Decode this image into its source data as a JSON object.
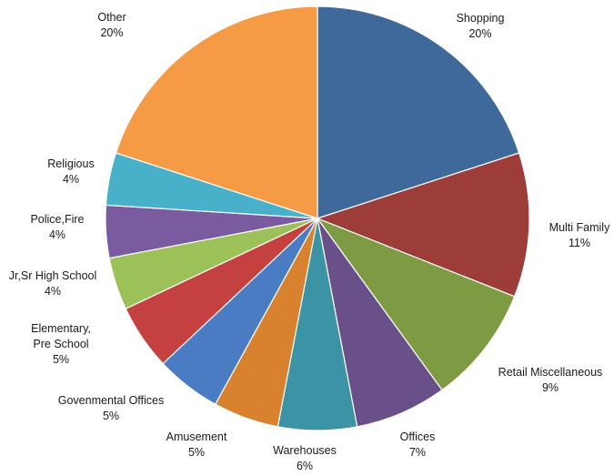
{
  "chart_data": {
    "type": "pie",
    "title": "",
    "start_angle_deg": 0,
    "direction": "clockwise",
    "slices": [
      {
        "label": "Shopping",
        "value": 20,
        "value_text": "20%",
        "color": "#3F689B"
      },
      {
        "label": "Multi Family",
        "value": 11,
        "value_text": "11%",
        "color": "#9C3D3A"
      },
      {
        "label": "Retail Miscellaneous",
        "value": 9,
        "value_text": "9%",
        "color": "#7E9A42"
      },
      {
        "label": "Offices",
        "value": 7,
        "value_text": "7%",
        "color": "#6A5088"
      },
      {
        "label": "Warehouses",
        "value": 6,
        "value_text": "6%",
        "color": "#3C93A6"
      },
      {
        "label": "Amusement",
        "value": 5,
        "value_text": "5%",
        "color": "#D8822F"
      },
      {
        "label": "Govenmental Offices",
        "value": 5,
        "value_text": "5%",
        "color": "#4A7CC4"
      },
      {
        "label": "Elementary,",
        "label2": "Pre School",
        "value": 5,
        "value_text": "5%",
        "color": "#C4413F"
      },
      {
        "label": "Jr,Sr High School",
        "value": 4,
        "value_text": "4%",
        "color": "#9CC159"
      },
      {
        "label": "Police,Fire",
        "value": 4,
        "value_text": "4%",
        "color": "#7A5BA0"
      },
      {
        "label": "Religious",
        "value": 4,
        "value_text": "4%",
        "color": "#48B0C8"
      },
      {
        "label": "Other",
        "value": 20,
        "value_text": "20%",
        "color": "#F59A45"
      }
    ]
  }
}
